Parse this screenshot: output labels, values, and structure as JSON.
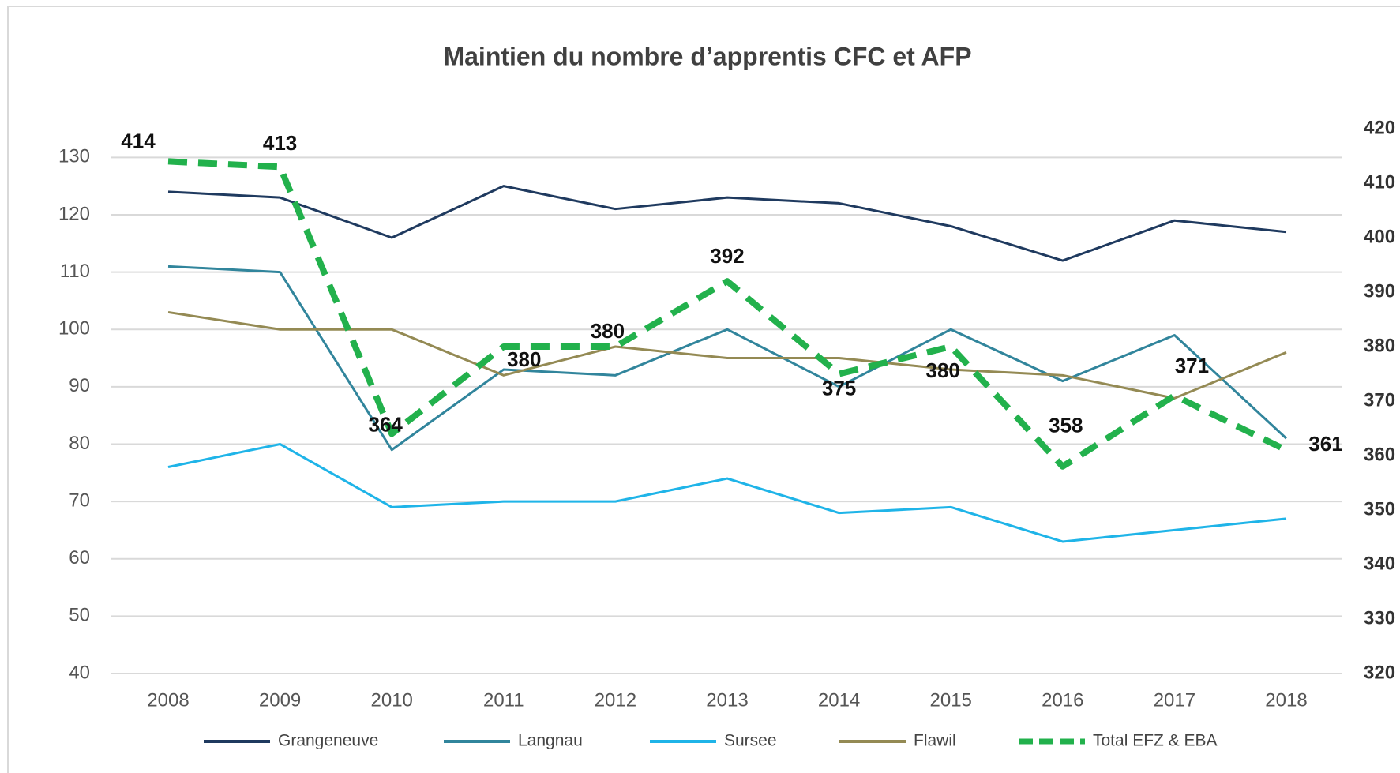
{
  "chart_data": {
    "type": "line",
    "title": "Maintien du nombre d’apprentis CFC et AFP",
    "categories": [
      "2008",
      "2009",
      "2010",
      "2011",
      "2012",
      "2013",
      "2014",
      "2015",
      "2016",
      "2017",
      "2018"
    ],
    "series": [
      {
        "name": "Grangeneuve",
        "color": "#1f3a5f",
        "values": [
          124,
          123,
          116,
          125,
          121,
          123,
          122,
          118,
          112,
          119,
          117
        ]
      },
      {
        "name": "Langnau",
        "color": "#31859c",
        "values": [
          111,
          110,
          79,
          93,
          92,
          100,
          90,
          100,
          91,
          99,
          81
        ]
      },
      {
        "name": "Sursee",
        "color": "#1fb4e8",
        "values": [
          76,
          80,
          69,
          70,
          70,
          74,
          68,
          69,
          63,
          65,
          67
        ]
      },
      {
        "name": "Flawil",
        "color": "#948a54",
        "values": [
          103,
          100,
          100,
          92,
          97,
          95,
          95,
          93,
          92,
          88,
          96
        ]
      },
      {
        "name": "Total EFZ & EBA",
        "color": "#22b14c",
        "axis": "y2",
        "dashed": true,
        "data_labels": true,
        "values": [
          414,
          413,
          364,
          380,
          380,
          392,
          375,
          380,
          358,
          371,
          361
        ]
      }
    ],
    "ylim": [
      40,
      135
    ],
    "yticks": [
      40,
      50,
      60,
      70,
      80,
      90,
      100,
      110,
      120,
      130
    ],
    "y2lim": [
      320,
      420
    ],
    "y2ticks": [
      320,
      330,
      340,
      350,
      360,
      370,
      380,
      390,
      400,
      410,
      420
    ],
    "grid": true,
    "legend": "bottom"
  }
}
